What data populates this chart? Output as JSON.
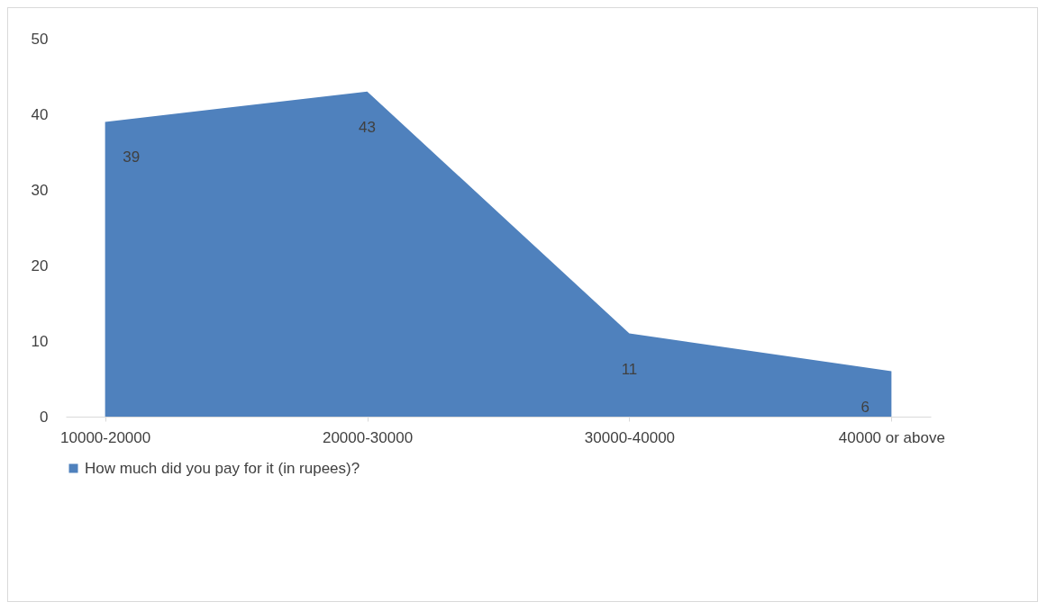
{
  "chart_data": {
    "type": "area",
    "categories": [
      "10000-20000",
      "20000-30000",
      "30000-40000",
      "40000 or above"
    ],
    "series": [
      {
        "name": "How much did you pay for it (in rupees)?",
        "color": "#4f81bd",
        "values": [
          39,
          43,
          11,
          6
        ]
      }
    ],
    "ylim": [
      0,
      50
    ],
    "yticks": [
      0,
      10,
      20,
      30,
      40,
      50
    ],
    "data_labels": true,
    "legend": "bottom",
    "grid": false
  }
}
